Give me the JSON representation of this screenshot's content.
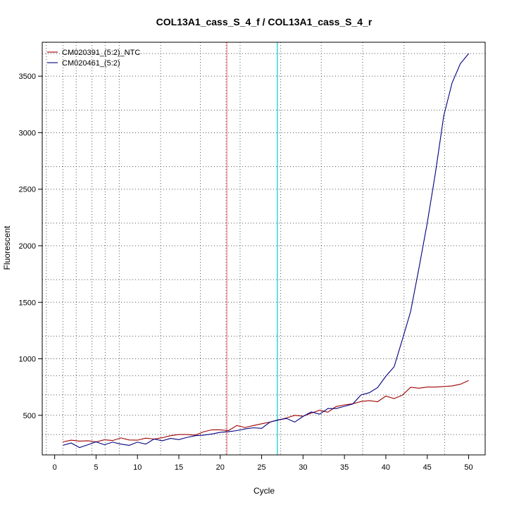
{
  "chart_data": {
    "type": "line",
    "title": "COL13A1_cass_S_4_f / COL13A1_cass_S_4_r",
    "xlabel": "Cycle",
    "ylabel": "Fluorescent",
    "xlim": [
      -1.5,
      52
    ],
    "ylim": [
      150,
      3800
    ],
    "x_ticks": [
      0,
      5,
      10,
      15,
      20,
      25,
      30,
      35,
      40,
      45,
      50
    ],
    "y_ticks": [
      500,
      1000,
      1500,
      2000,
      2500,
      3000,
      3500
    ],
    "y_grid_extra": [
      330,
      680,
      850,
      1200,
      1700,
      2200,
      2700,
      3200,
      3700
    ],
    "x_grid_extra": [
      -1,
      1,
      2.6,
      4.5,
      6.1,
      7.8,
      12.8,
      17.6,
      20.7,
      22.4,
      27.3,
      32.2,
      37.2,
      42.2,
      47.1
    ],
    "grid": true,
    "legend_position": "top-left",
    "vlines": [
      {
        "x": 20.8,
        "color": "#f08080"
      },
      {
        "x": 26.9,
        "color": "#00ced1"
      }
    ],
    "x": [
      1,
      2,
      3,
      4,
      5,
      6,
      7,
      8,
      9,
      10,
      11,
      12,
      13,
      14,
      15,
      16,
      17,
      18,
      19,
      20,
      21,
      22,
      23,
      24,
      25,
      26,
      27,
      28,
      29,
      30,
      31,
      32,
      33,
      34,
      35,
      36,
      37,
      38,
      39,
      40,
      41,
      42,
      43,
      44,
      45,
      46,
      47,
      48,
      49,
      50
    ],
    "series": [
      {
        "name": "CM020391_(5:2)_NTC",
        "color": "#a00000",
        "values": [
          265,
          280,
          272,
          275,
          265,
          283,
          277,
          300,
          282,
          280,
          298,
          290,
          302,
          320,
          330,
          330,
          325,
          355,
          372,
          372,
          365,
          410,
          392,
          410,
          425,
          440,
          458,
          477,
          500,
          492,
          520,
          545,
          528,
          578,
          592,
          602,
          622,
          630,
          620,
          670,
          648,
          678,
          748,
          740,
          750,
          750,
          755,
          760,
          775,
          808
        ]
      },
      {
        "name": "CM020461_(5:2)",
        "color": "#000080",
        "values": [
          235,
          255,
          215,
          240,
          265,
          240,
          263,
          245,
          235,
          263,
          245,
          290,
          275,
          296,
          285,
          305,
          320,
          325,
          335,
          350,
          355,
          365,
          380,
          390,
          385,
          440,
          460,
          472,
          440,
          490,
          530,
          510,
          560,
          560,
          580,
          600,
          680,
          700,
          745,
          845,
          930,
          1170,
          1420,
          1800,
          2200,
          2650,
          3150,
          3440,
          3610,
          3700
        ]
      }
    ]
  }
}
